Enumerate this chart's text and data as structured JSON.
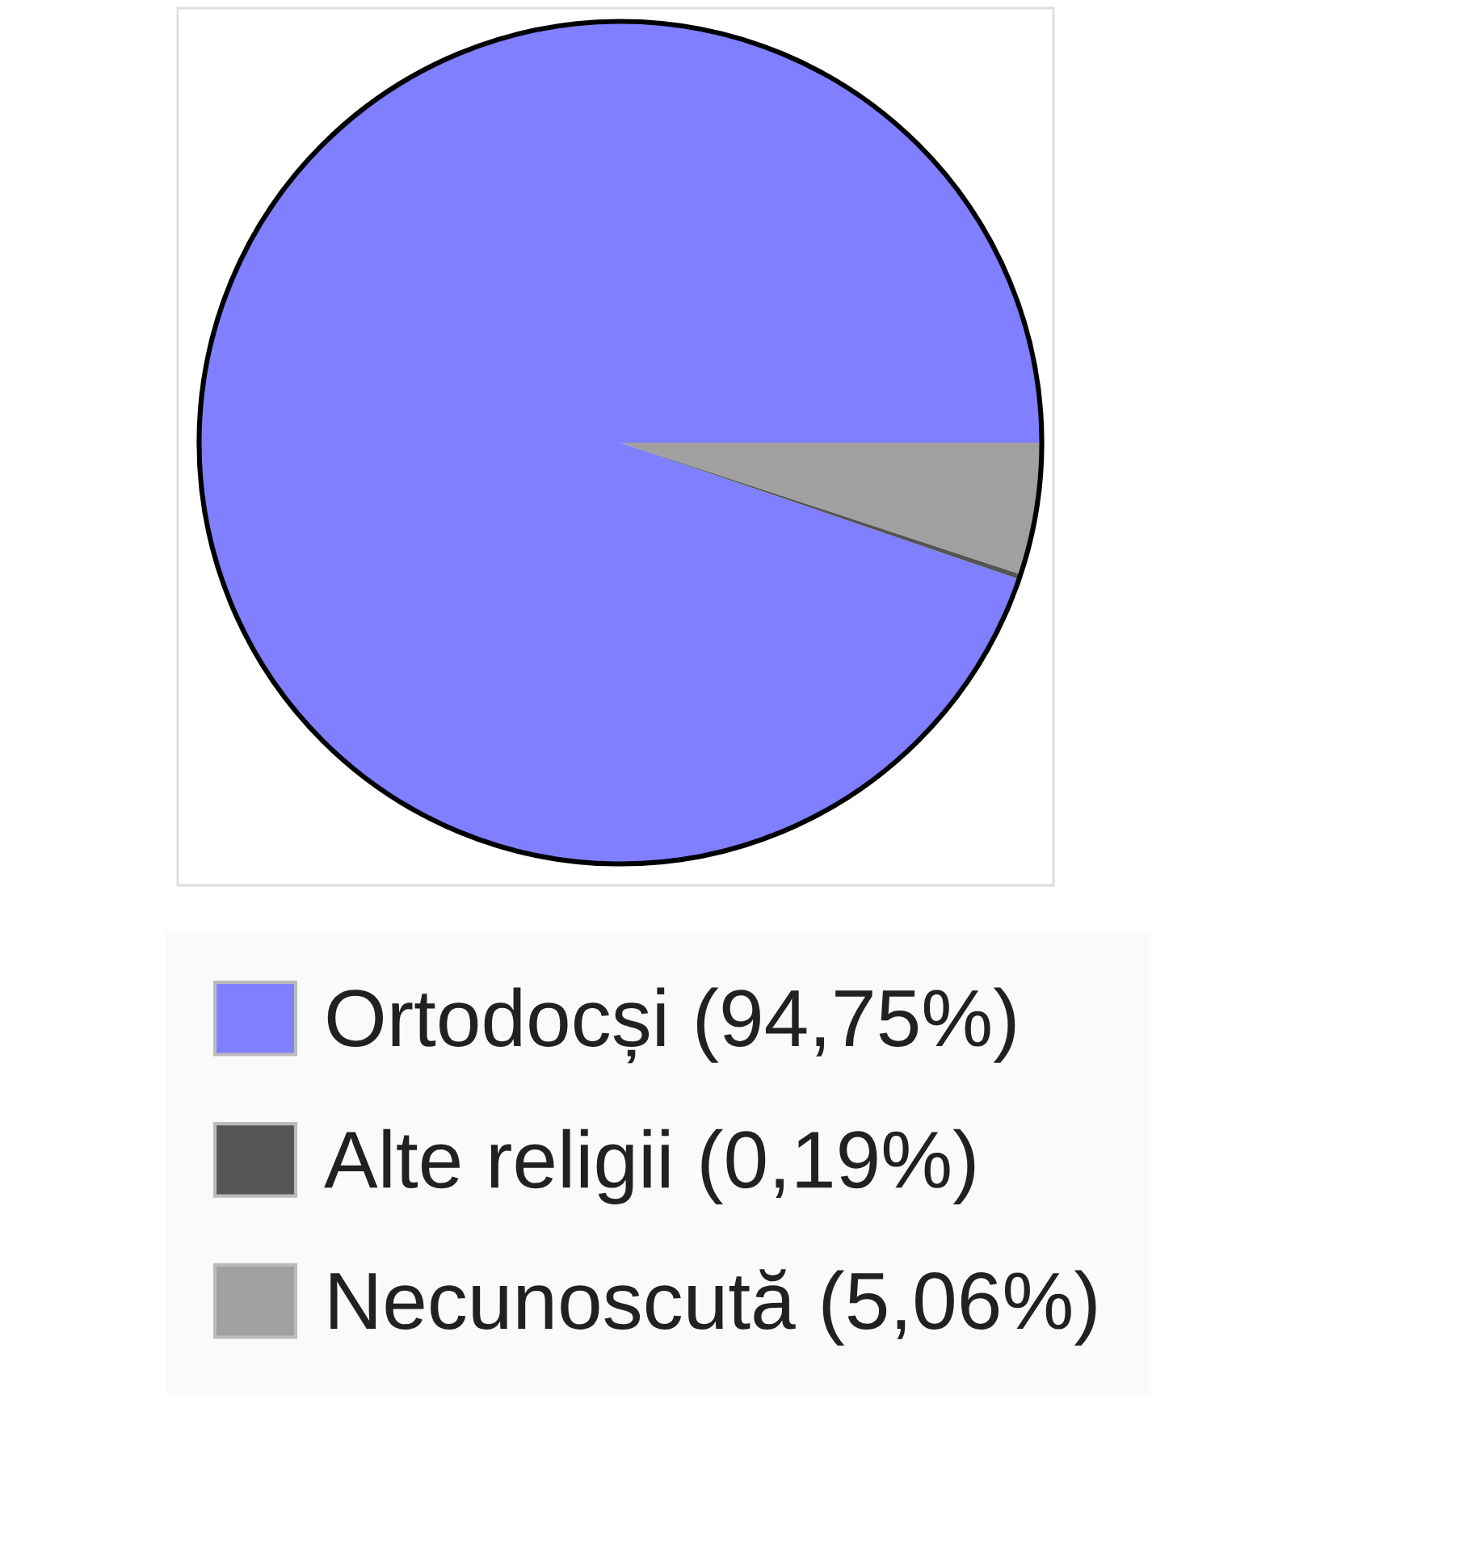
{
  "chart_data": {
    "type": "pie",
    "categories": [
      "Ortodocși",
      "Alte religii",
      "Necunoscută"
    ],
    "values": [
      94.75,
      0.19,
      5.06
    ],
    "value_labels": [
      "(94,75%)",
      "(0,19%)",
      "(5,06%)"
    ],
    "colors": [
      "#7f7fff",
      "#555555",
      "#a0a0a0"
    ],
    "legend": "bottom"
  }
}
